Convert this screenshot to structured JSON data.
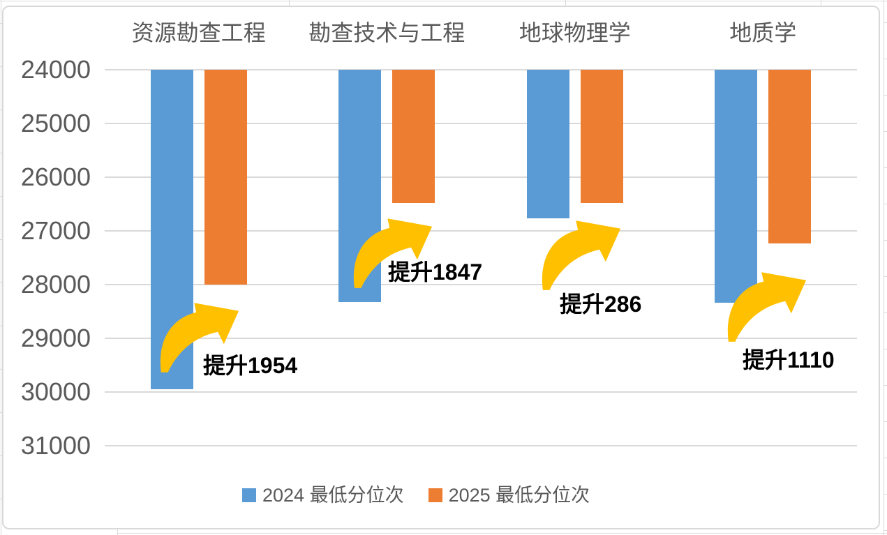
{
  "chart_data": {
    "type": "bar",
    "orientation": "columns-hanging-from-top (reversed ranking axis, smaller = better)",
    "categories": [
      "资源勘查工程",
      "勘查技术与工程",
      "地球物理学",
      "地质学"
    ],
    "series": [
      {
        "name": "2024 最低分位次",
        "color": "#5B9BD5",
        "values": [
          29950,
          28330,
          26769,
          28337
        ]
      },
      {
        "name": "2025 最低分位次",
        "color": "#ED7D31",
        "values": [
          27996,
          26483,
          26483,
          27227
        ]
      }
    ],
    "annotations": [
      {
        "label": "提升1954",
        "category": "资源勘查工程",
        "improvement": 1954
      },
      {
        "label": "提升1847",
        "category": "勘查技术与工程",
        "improvement": 1847
      },
      {
        "label": "提升286",
        "category": "地球物理学",
        "improvement": 286
      },
      {
        "label": "提升1110",
        "category": "地质学",
        "improvement": 1110
      }
    ],
    "y_axis": {
      "min": 24000,
      "max": 31000,
      "ticks": [
        24000,
        25000,
        26000,
        27000,
        28000,
        29000,
        30000,
        31000
      ],
      "reversed": true,
      "bars_anchor_value": 24000
    },
    "legend": {
      "position": "bottom-center",
      "entries": [
        "2024 最低分位次",
        "2025 最低分位次"
      ]
    },
    "grid": true,
    "colors": {
      "series_2024": "#5B9BD5",
      "series_2025": "#ED7D31",
      "arrow": "#FFC000",
      "axis_text": "#595959",
      "annotation_text": "#000000",
      "gridline": "#D9D9D9",
      "background": "#FFFFFF"
    }
  }
}
